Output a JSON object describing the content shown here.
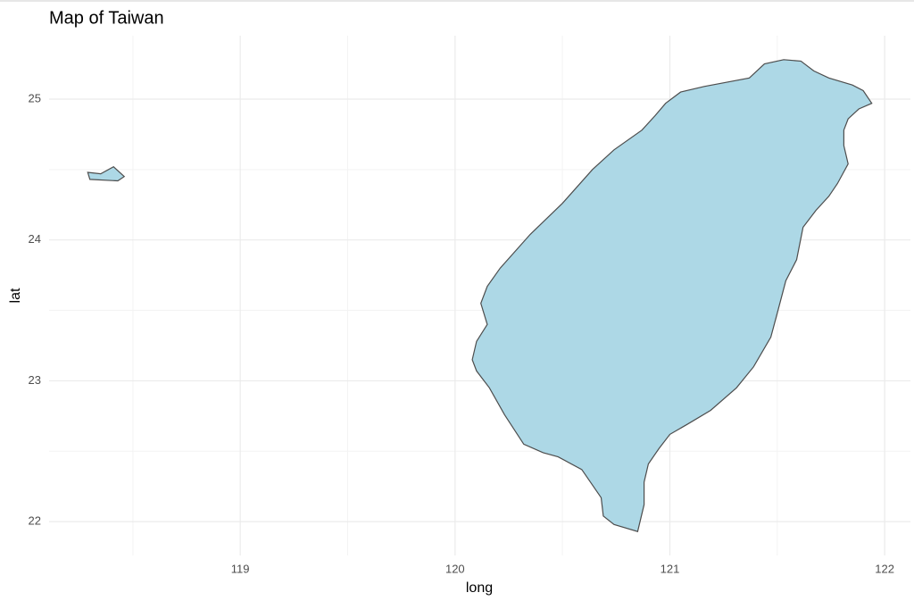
{
  "chart_data": {
    "type": "map",
    "title": "Map of Taiwan",
    "x_label": "long",
    "y_label": "lat",
    "xlim": [
      118.11,
      122.12
    ],
    "ylim": [
      21.76,
      25.45
    ],
    "xticks": [
      119,
      120,
      121,
      122
    ],
    "yticks": [
      22,
      23,
      24,
      25
    ],
    "xminor": [
      118.5,
      119.5,
      120.5,
      121.5
    ],
    "yminor": [
      22.5,
      23.5,
      24.5
    ],
    "grid": true,
    "fill": "#add8e6",
    "stroke": "#4d4d4d",
    "polygons": [
      {
        "x": [
          121.53,
          121.61,
          121.67,
          121.74,
          121.85,
          121.9,
          121.94,
          121.88,
          121.83,
          121.81,
          121.81,
          121.83,
          121.78,
          121.74,
          121.68,
          121.62,
          121.59,
          121.54,
          121.5,
          121.47,
          121.39,
          121.31,
          121.19,
          121.08,
          121.0,
          120.95,
          120.9,
          120.88,
          120.88,
          120.85,
          120.74,
          120.69,
          120.68,
          120.59,
          120.48,
          120.41,
          120.32,
          120.23,
          120.16,
          120.1,
          120.08,
          120.1,
          120.15,
          120.12,
          120.15,
          120.21,
          120.35,
          120.5,
          120.64,
          120.74,
          120.87,
          120.93,
          120.98,
          121.05,
          121.16,
          121.37,
          121.44
        ],
        "y": [
          25.28,
          25.27,
          25.2,
          25.15,
          25.1,
          25.06,
          24.97,
          24.93,
          24.86,
          24.78,
          24.67,
          24.54,
          24.4,
          24.31,
          24.21,
          24.09,
          23.86,
          23.71,
          23.48,
          23.31,
          23.1,
          22.95,
          22.79,
          22.69,
          22.62,
          22.52,
          22.41,
          22.28,
          22.12,
          21.93,
          21.98,
          22.04,
          22.17,
          22.37,
          22.46,
          22.49,
          22.55,
          22.76,
          22.95,
          23.07,
          23.15,
          23.28,
          23.4,
          23.55,
          23.67,
          23.8,
          24.04,
          24.26,
          24.5,
          24.64,
          24.78,
          24.88,
          24.97,
          25.05,
          25.09,
          25.15,
          25.25
        ]
      },
      {
        "x": [
          118.29,
          118.35,
          118.41,
          118.46,
          118.43,
          118.3
        ],
        "y": [
          24.48,
          24.47,
          24.52,
          24.45,
          24.42,
          24.43
        ]
      }
    ]
  }
}
